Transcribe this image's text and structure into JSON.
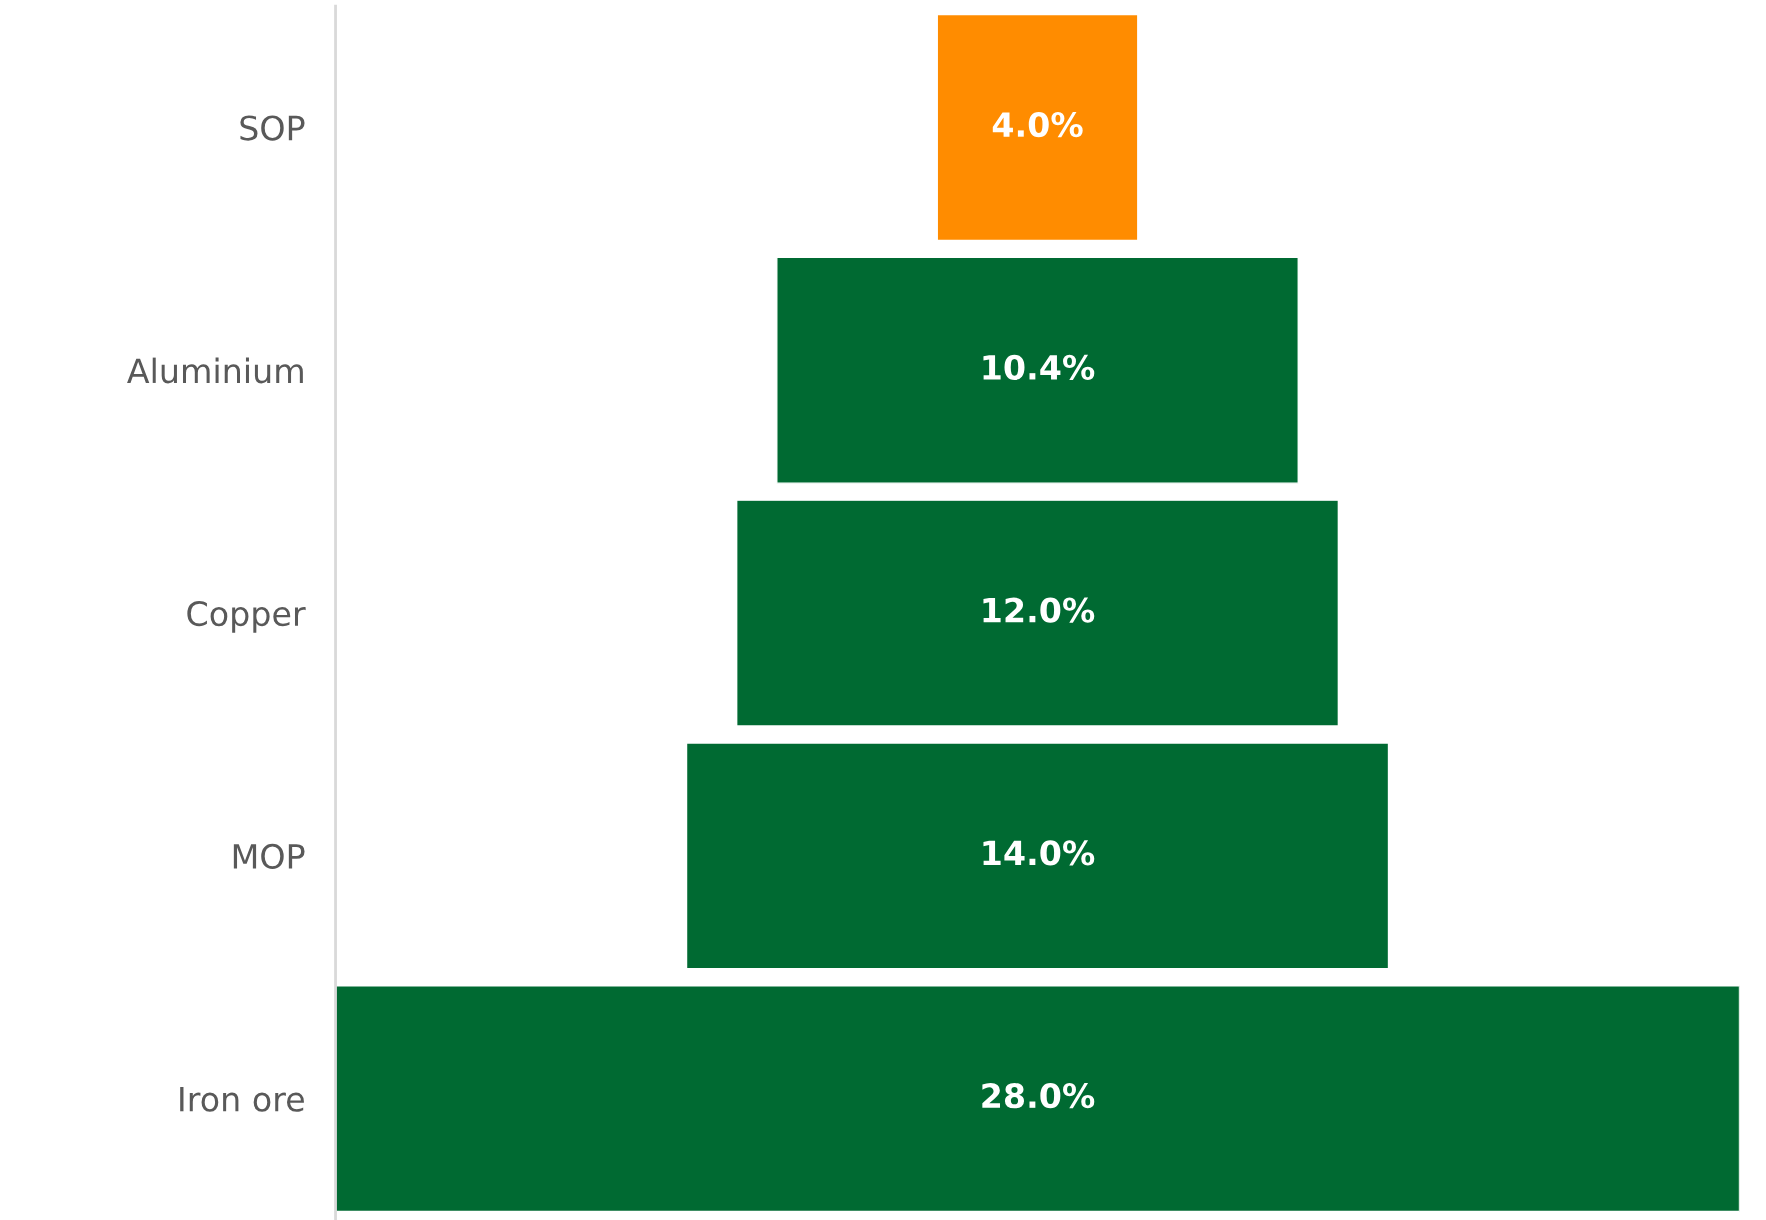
{
  "chart_data": {
    "type": "other",
    "categories": [
      "SOP",
      "Aluminium",
      "Copper",
      "MOP",
      "Iron ore"
    ],
    "values": [
      4.0,
      10.4,
      12.0,
      14.0,
      28.0
    ],
    "colors": [
      "#ff8c00",
      "#006a32",
      "#006a32",
      "#006a32",
      "#006a32"
    ],
    "value_labels": [
      "4.0%",
      "10.4%",
      "12.0%",
      "14.0%",
      "28.0%"
    ]
  }
}
